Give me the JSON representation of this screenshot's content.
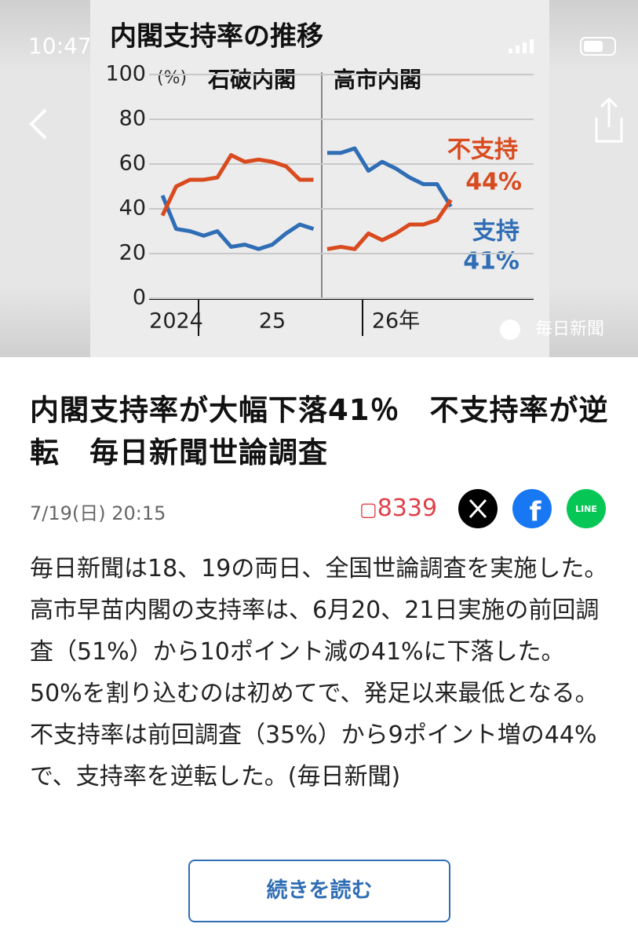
{
  "status": {
    "time": "10:47"
  },
  "chart_data": {
    "type": "line",
    "title": "内閣支持率の推移",
    "y_unit": "(%)",
    "cabinets": [
      "石破内閣",
      "高市内閣"
    ],
    "categories": [
      null,
      "2024",
      null,
      null,
      null,
      null,
      null,
      null,
      "25",
      null,
      null,
      null,
      null,
      null,
      null,
      null,
      null,
      "26年",
      null,
      null,
      null,
      null
    ],
    "series": [
      {
        "color": "#2f6db5",
        "values": [
          46,
          31,
          30,
          28,
          30,
          23,
          24,
          22,
          24,
          29,
          33,
          31,
          null,
          null,
          null,
          null,
          null,
          null,
          null,
          null,
          null,
          null
        ]
      },
      {
        "color": "#d94a1e",
        "values": [
          37,
          50,
          53,
          53,
          54,
          64,
          61,
          62,
          61,
          59,
          53,
          53,
          null,
          null,
          null,
          null,
          null,
          null,
          null,
          null,
          null,
          null
        ]
      },
      {
        "color": "#2f6db5",
        "values": [
          null,
          null,
          null,
          null,
          null,
          null,
          null,
          null,
          null,
          null,
          null,
          null,
          65,
          65,
          67,
          57,
          61,
          58,
          54,
          51,
          51,
          41
        ]
      },
      {
        "color": "#d94a1e",
        "values": [
          null,
          null,
          null,
          null,
          null,
          null,
          null,
          null,
          null,
          null,
          null,
          null,
          22,
          23,
          22,
          29,
          26,
          29,
          33,
          33,
          35,
          44
        ]
      }
    ],
    "annotations": [
      {
        "text": "不支持",
        "value": "44%"
      },
      {
        "text": "支持",
        "value": "41%"
      }
    ],
    "ylim": [
      0,
      100
    ],
    "yticks": [
      0,
      20,
      40,
      60,
      80,
      100
    ],
    "grid": true
  },
  "photo_credit": "毎日新聞",
  "article": {
    "title": "内閣支持率が大幅下落41％　不支持率が逆転　毎日新聞世論調査",
    "date": "7/19(日) 20:15",
    "comments": "8339",
    "line_label": "LINE",
    "body": "毎日新聞は18、19の両日、全国世論調査を実施した。高市早苗内閣の支持率は、6月20、21日実施の前回調査（51%）から10ポイント減の41%に下落した。50%を割り込むのは初めてで、発足以来最低となる。不支持率は前回調査（35%）から9ポイント増の44%で、支持率を逆転した。(毎日新聞)",
    "button": "続きを読む"
  }
}
